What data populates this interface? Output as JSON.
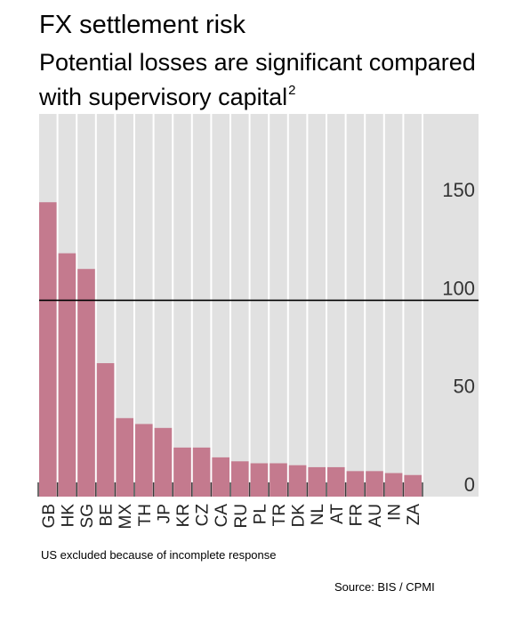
{
  "header": {
    "title": "FX settlement risk",
    "subtitle": "Potential losses are significant compared with supervisory capital",
    "subtitle_note": "2"
  },
  "footer": {
    "footnote": "US excluded because of incomplete response",
    "source": "Source: BIS / CPMI"
  },
  "colors": {
    "bar": "#c47a8e",
    "plot_background": "#e1e1e1",
    "gridline": "#ffffff",
    "reference_line": "#000000"
  },
  "chart_data": {
    "type": "bar",
    "title": "FX settlement risk",
    "subtitle": "Potential losses are significant compared with supervisory capital",
    "categories": [
      "GB",
      "HK",
      "SG",
      "BE",
      "MX",
      "TH",
      "JP",
      "KR",
      "CZ",
      "CA",
      "RU",
      "PL",
      "TR",
      "DK",
      "NL",
      "AT",
      "FR",
      "AU",
      "IN",
      "ZA"
    ],
    "values": [
      150,
      124,
      116,
      68,
      40,
      37,
      35,
      25,
      25,
      20,
      18,
      17,
      17,
      16,
      15,
      15,
      13,
      13,
      12,
      11
    ],
    "xlabel": "",
    "ylabel": "",
    "ylim": [
      0,
      195
    ],
    "yticks": [
      0,
      50,
      100,
      150
    ],
    "y_axis_position": "right",
    "reference_line": 100,
    "vertical_gridlines": true,
    "legend": "none"
  }
}
